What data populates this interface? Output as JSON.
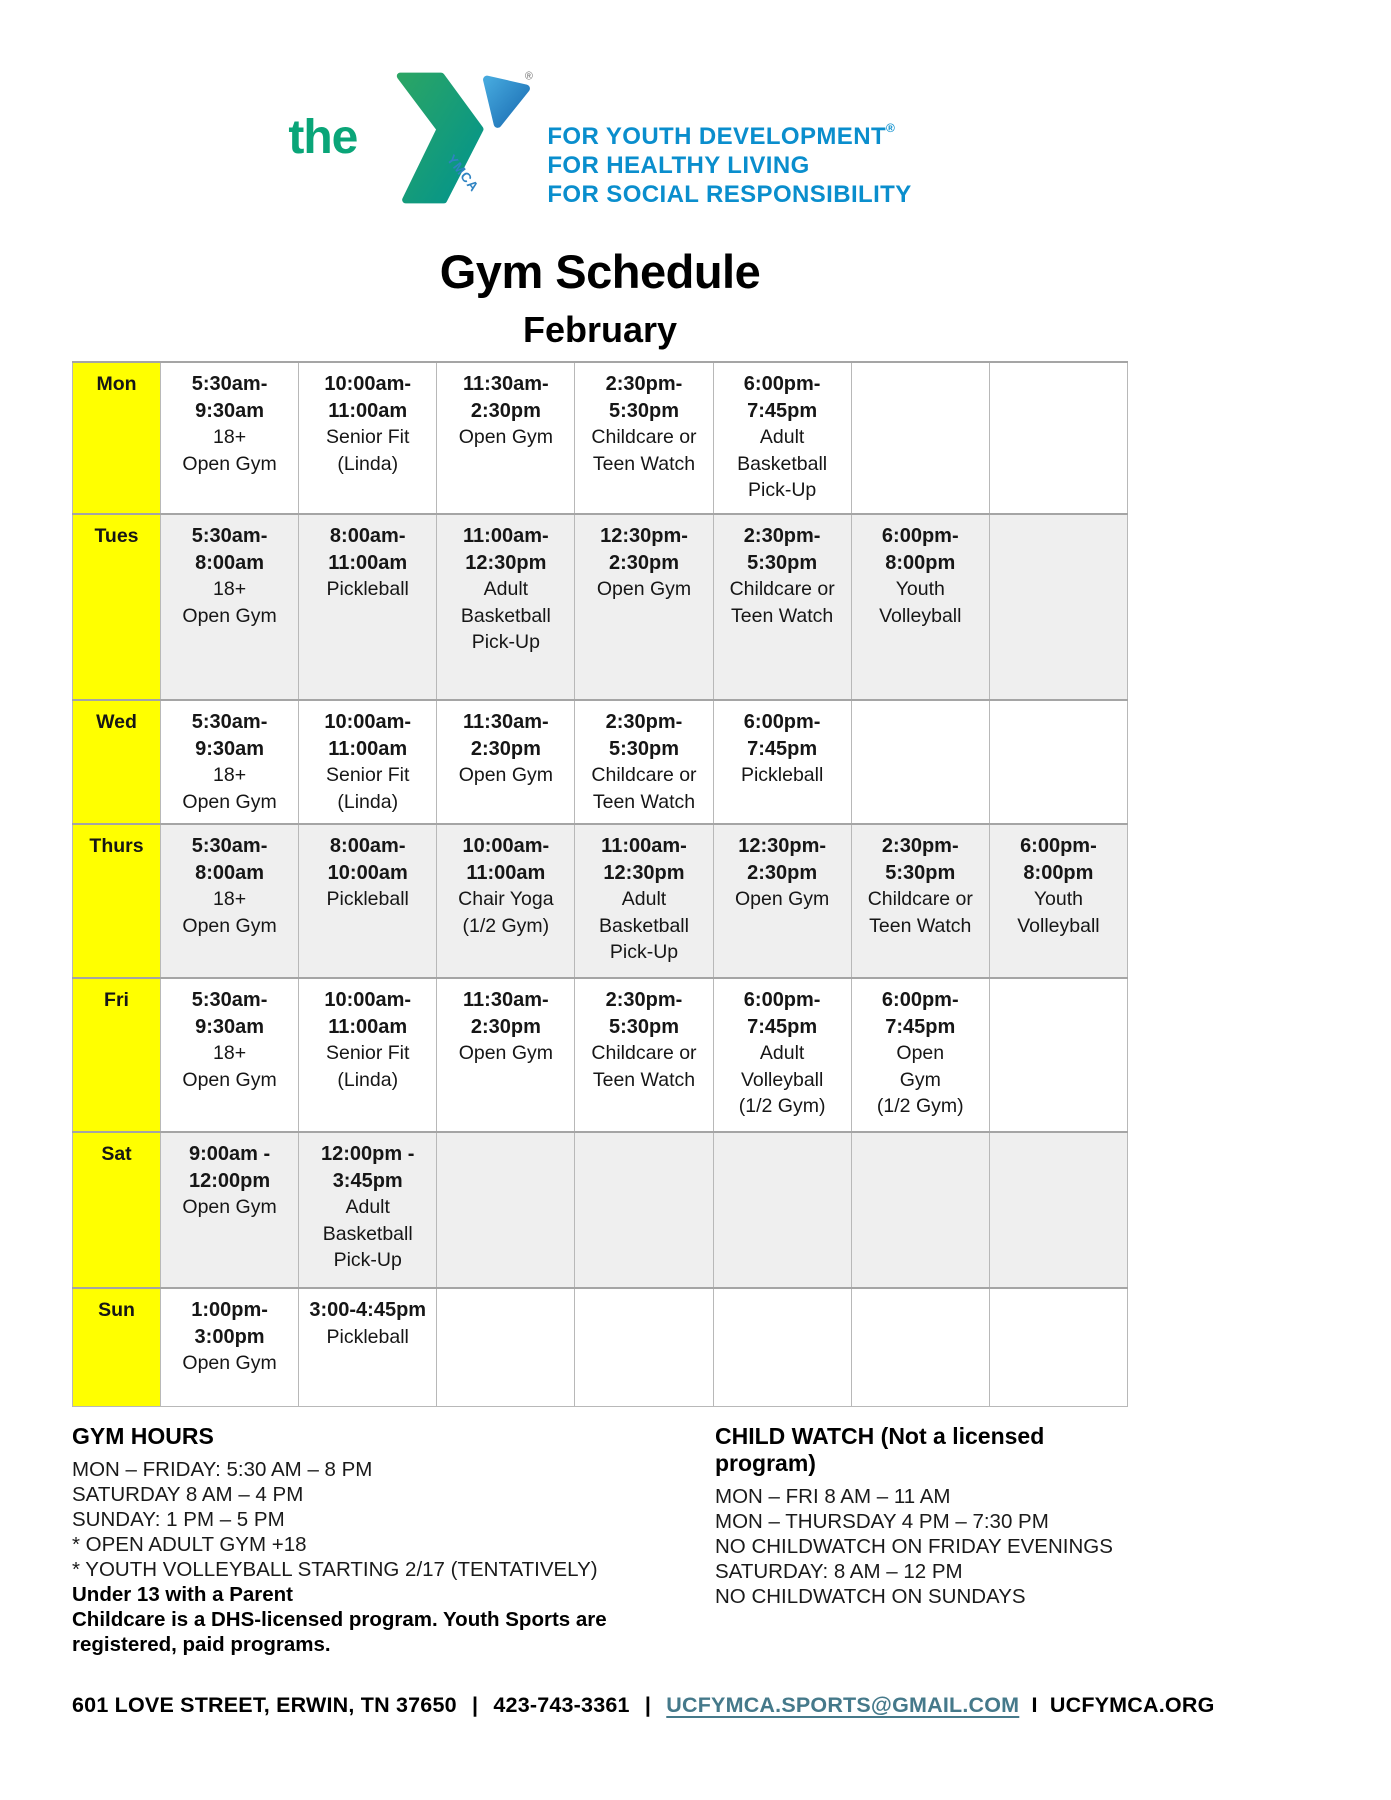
{
  "logo": {
    "the_label": "the",
    "ymca_label": "YMCA",
    "registered_mark": "®",
    "taglines": [
      "FOR YOUTH DEVELOPMENT",
      "FOR HEALTHY LIVING",
      "FOR SOCIAL RESPONSIBILITY"
    ],
    "colors": {
      "green": "#0aa578",
      "tagline_blue": "#0a8ecd",
      "triangle_blue": "#1a6cb2",
      "chevron_teal": "#00938e"
    }
  },
  "title": "Gym Schedule",
  "subtitle": "February",
  "schedule": {
    "rows": [
      {
        "day": "Mon",
        "cells": [
          {
            "time": [
              "5:30am-",
              "9:30am"
            ],
            "activity": [
              "18+",
              "Open Gym"
            ]
          },
          {
            "time": [
              "10:00am-",
              "11:00am"
            ],
            "activity": [
              "Senior Fit",
              "(Linda)"
            ]
          },
          {
            "time": [
              "11:30am-",
              "2:30pm"
            ],
            "activity": [
              "Open Gym"
            ]
          },
          {
            "time": [
              "2:30pm-",
              "5:30pm"
            ],
            "activity": [
              "Childcare or",
              "Teen Watch"
            ]
          },
          {
            "time": [
              "6:00pm-",
              "7:45pm"
            ],
            "activity": [
              "Adult",
              "Basketball",
              "Pick-Up"
            ]
          },
          null,
          null
        ]
      },
      {
        "day": "Tues",
        "cells": [
          {
            "time": [
              "5:30am-",
              "8:00am"
            ],
            "activity": [
              "18+",
              "Open Gym"
            ]
          },
          {
            "time": [
              "8:00am-",
              "11:00am"
            ],
            "activity": [
              "Pickleball"
            ]
          },
          {
            "time": [
              "11:00am-",
              "12:30pm"
            ],
            "activity": [
              "Adult",
              "Basketball",
              "Pick-Up"
            ]
          },
          {
            "time": [
              "12:30pm-",
              "2:30pm"
            ],
            "activity": [
              "Open Gym"
            ]
          },
          {
            "time": [
              "2:30pm-",
              "5:30pm"
            ],
            "activity": [
              "Childcare or",
              "Teen Watch"
            ]
          },
          {
            "time": [
              "6:00pm-",
              "8:00pm"
            ],
            "activity": [
              "Youth",
              "Volleyball"
            ]
          },
          null
        ]
      },
      {
        "day": "Wed",
        "cells": [
          {
            "time": [
              "5:30am-",
              "9:30am"
            ],
            "activity": [
              "18+",
              "Open Gym"
            ]
          },
          {
            "time": [
              "10:00am-",
              "11:00am"
            ],
            "activity": [
              "Senior Fit",
              "(Linda)"
            ]
          },
          {
            "time": [
              "11:30am-",
              "2:30pm"
            ],
            "activity": [
              "Open Gym"
            ]
          },
          {
            "time": [
              "2:30pm-",
              "5:30pm"
            ],
            "activity": [
              "Childcare or",
              "Teen Watch"
            ]
          },
          {
            "time": [
              "6:00pm-",
              "7:45pm"
            ],
            "activity": [
              "Pickleball"
            ]
          },
          null,
          null
        ]
      },
      {
        "day": "Thurs",
        "cells": [
          {
            "time": [
              "5:30am-",
              "8:00am"
            ],
            "activity": [
              "18+",
              "Open Gym"
            ]
          },
          {
            "time": [
              "8:00am-",
              "10:00am"
            ],
            "activity": [
              "Pickleball"
            ]
          },
          {
            "time": [
              "10:00am-",
              "11:00am"
            ],
            "activity": [
              "Chair Yoga",
              "(1/2 Gym)"
            ]
          },
          {
            "time": [
              "11:00am-",
              "12:30pm"
            ],
            "activity": [
              "Adult",
              "Basketball",
              "Pick-Up"
            ]
          },
          {
            "time": [
              "12:30pm-",
              "2:30pm"
            ],
            "activity": [
              "Open Gym"
            ]
          },
          {
            "time": [
              "2:30pm-",
              "5:30pm"
            ],
            "activity": [
              "Childcare or",
              "Teen Watch"
            ]
          },
          {
            "time": [
              "6:00pm-",
              "8:00pm"
            ],
            "activity": [
              "Youth",
              "Volleyball"
            ]
          }
        ]
      },
      {
        "day": "Fri",
        "cells": [
          {
            "time": [
              "5:30am-",
              "9:30am"
            ],
            "activity": [
              "18+",
              "Open Gym"
            ]
          },
          {
            "time": [
              "10:00am-",
              "11:00am"
            ],
            "activity": [
              "Senior Fit",
              "(Linda)"
            ]
          },
          {
            "time": [
              "11:30am-",
              "2:30pm"
            ],
            "activity": [
              "Open Gym"
            ]
          },
          {
            "time": [
              "2:30pm-",
              "5:30pm"
            ],
            "activity": [
              "Childcare or",
              "Teen Watch"
            ]
          },
          {
            "time": [
              "6:00pm-",
              "7:45pm"
            ],
            "activity": [
              "Adult",
              "Volleyball",
              "(1/2 Gym)"
            ]
          },
          {
            "time": [
              "6:00pm-",
              "7:45pm"
            ],
            "activity": [
              "Open",
              "Gym",
              "(1/2 Gym)"
            ]
          },
          null
        ]
      },
      {
        "day": "Sat",
        "cells": [
          {
            "time": [
              "9:00am -",
              "12:00pm"
            ],
            "activity": [
              "Open Gym"
            ]
          },
          {
            "time": [
              "12:00pm -",
              "3:45pm"
            ],
            "activity": [
              "Adult",
              "Basketball",
              "Pick-Up"
            ]
          },
          null,
          null,
          null,
          null,
          null
        ]
      },
      {
        "day": "Sun",
        "cells": [
          {
            "time": [
              "1:00pm-",
              "3:00pm"
            ],
            "activity": [
              "Open Gym"
            ]
          },
          {
            "time": [
              "3:00-4:45pm"
            ],
            "activity": [
              "Pickleball"
            ]
          },
          null,
          null,
          null,
          null,
          null
        ]
      }
    ]
  },
  "gym_hours": {
    "heading": "GYM HOURS",
    "lines": [
      {
        "text": "MON – FRIDAY: 5:30 AM – 8 PM",
        "bold": false
      },
      {
        "text": "SATURDAY 8 AM – 4 PM",
        "bold": false
      },
      {
        "text": "SUNDAY: 1 PM – 5 PM",
        "bold": false
      },
      {
        "text": "* OPEN ADULT GYM +18",
        "bold": false
      },
      {
        "text": "* YOUTH VOLLEYBALL STARTING 2/17 (TENTATIVELY)",
        "bold": false
      },
      {
        "text": "Under 13 with a Parent",
        "bold": true
      },
      {
        "text": "Childcare is a DHS-licensed program. Youth Sports are registered, paid programs.",
        "bold": true
      }
    ]
  },
  "child_watch": {
    "heading": "CHILD WATCH (Not a licensed program)",
    "lines": [
      {
        "text": "MON – FRI 8 AM – 11 AM",
        "bold": false
      },
      {
        "text": "MON – THURSDAY 4 PM – 7:30 PM",
        "bold": false
      },
      {
        "text": "NO CHILDWATCH ON FRIDAY EVENINGS",
        "bold": false
      },
      {
        "text": "SATURDAY: 8 AM – 12 PM",
        "bold": false
      },
      {
        "text": "NO CHILDWATCH ON SUNDAYS",
        "bold": false
      }
    ]
  },
  "footer": {
    "address": "601 LOVE STREET, ERWIN, TN 37650",
    "pipe1": "|",
    "phone": "423-743-3361",
    "pipe2": "|",
    "email": "UCFYMCA.SPORTS@GMAIL.COM",
    "i_sep": "I",
    "website": "UCFYMCA.ORG"
  }
}
